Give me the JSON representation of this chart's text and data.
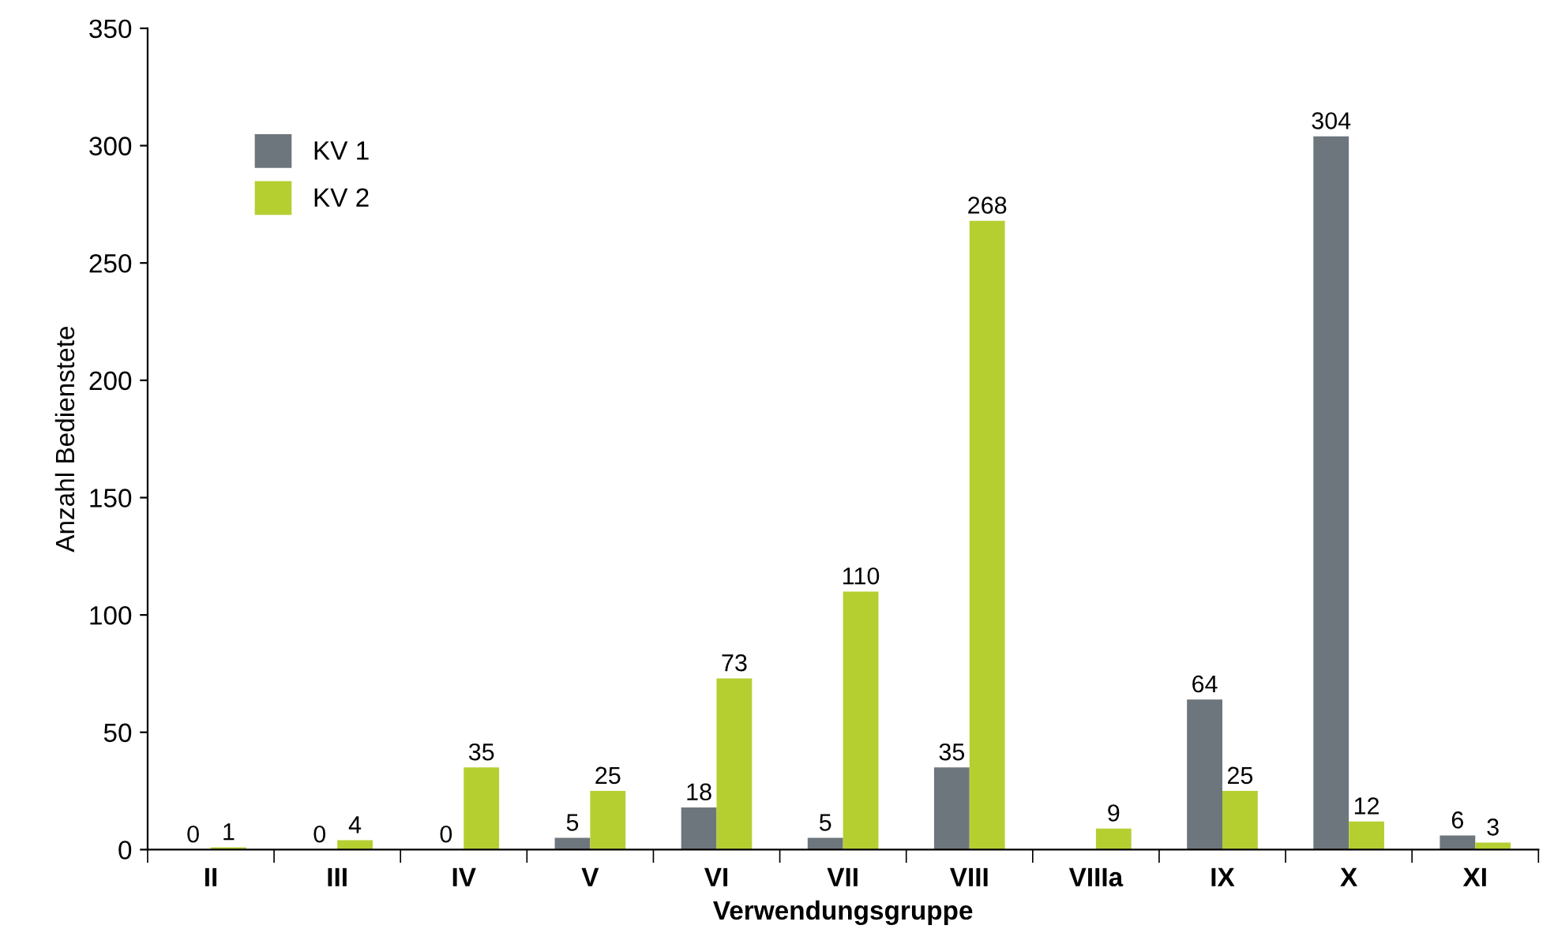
{
  "chart_data": {
    "type": "bar",
    "xlabel": "Verwendungsgruppe",
    "ylabel": "Anzahl Bedienstete",
    "categories": [
      "II",
      "III",
      "IV",
      "V",
      "VI",
      "VII",
      "VIII",
      "VIIIa",
      "IX",
      "X",
      "XI"
    ],
    "series": [
      {
        "name": "KV 1",
        "color": "#6d767d",
        "values": [
          0,
          0,
          0,
          5,
          18,
          5,
          35,
          null,
          64,
          304,
          6
        ]
      },
      {
        "name": "KV 2",
        "color": "#b5cf31",
        "values": [
          1,
          4,
          35,
          25,
          73,
          110,
          268,
          9,
          25,
          12,
          3
        ]
      }
    ],
    "ylim": [
      0,
      350
    ],
    "yticks": [
      0,
      50,
      100,
      150,
      200,
      250,
      300,
      350
    ],
    "data_labels": true,
    "grid": false,
    "legend": "top left"
  }
}
